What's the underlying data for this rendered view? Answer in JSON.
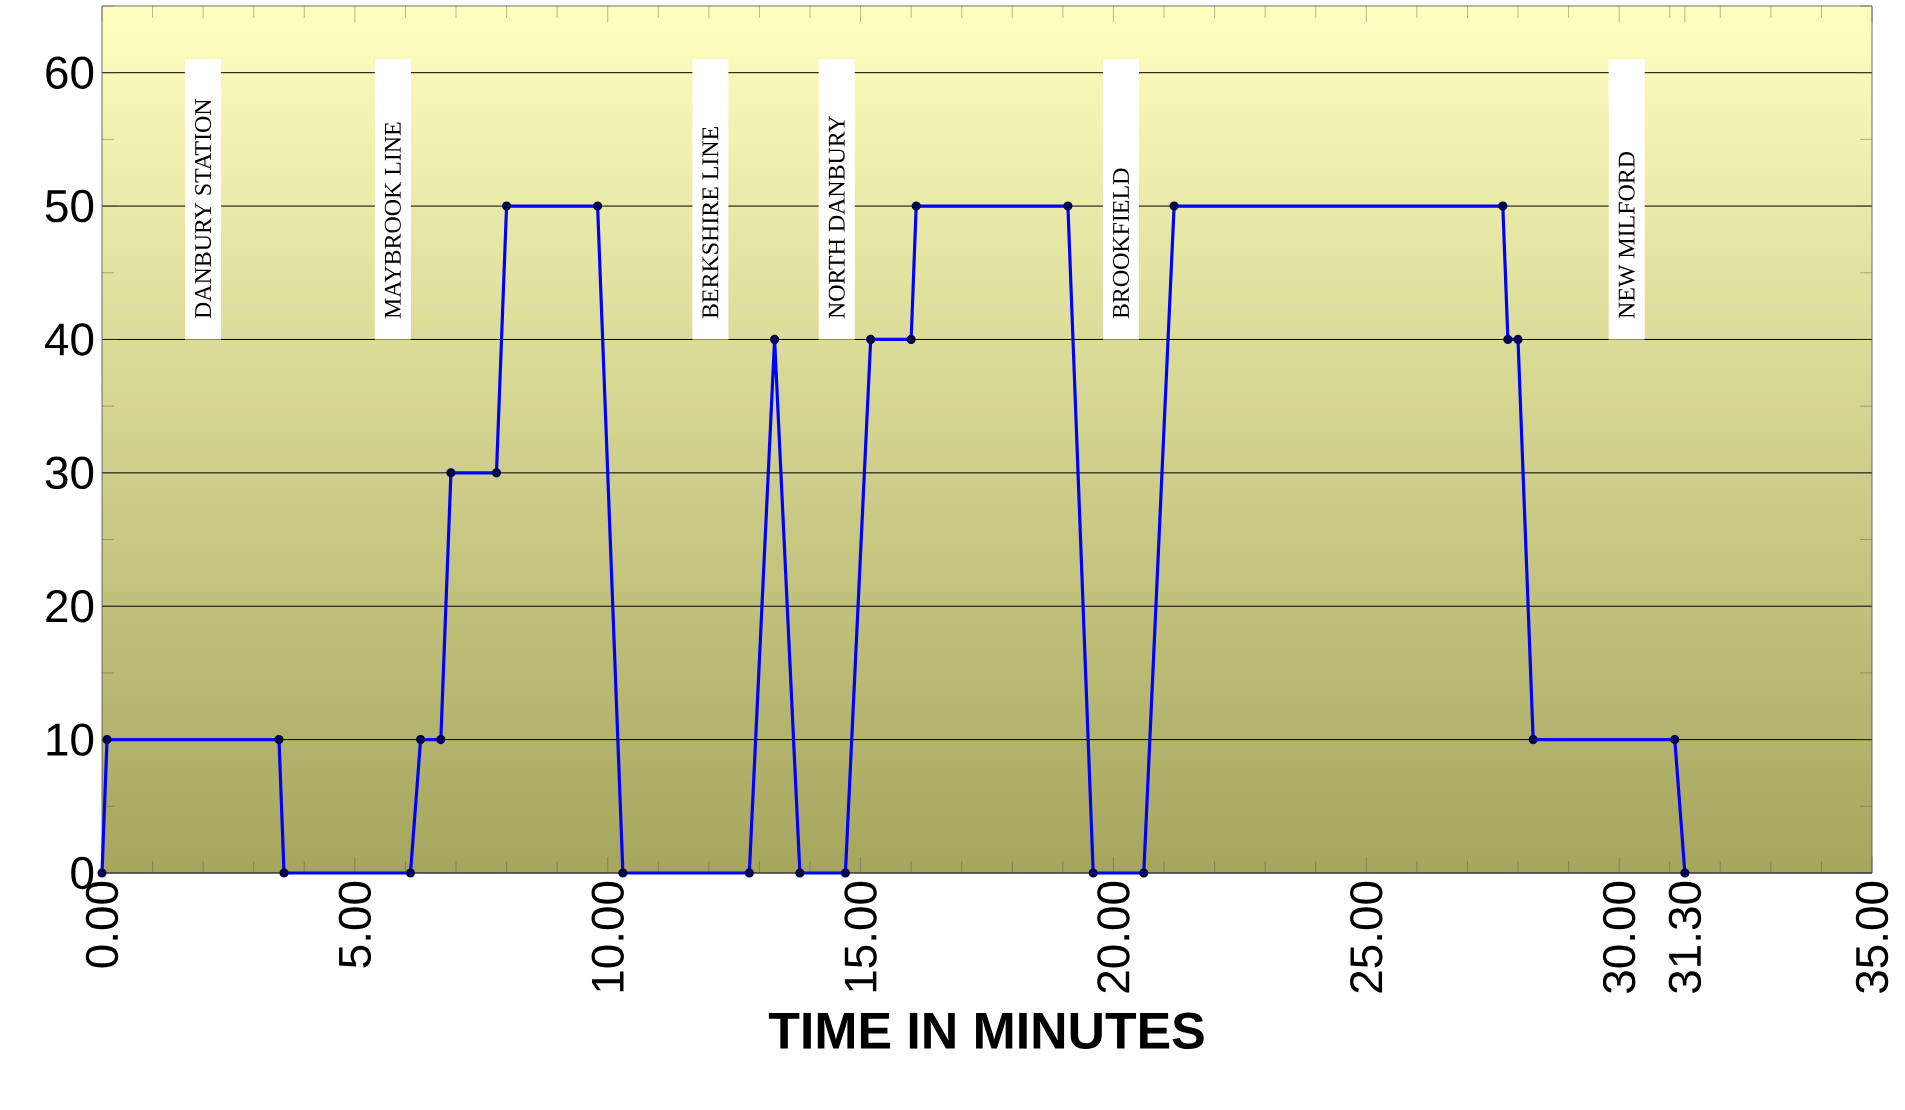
{
  "chart_data": {
    "type": "line",
    "xlabel": "TIME IN MINUTES",
    "x": [
      0,
      0.1,
      3.5,
      3.6,
      6.1,
      6.3,
      6.7,
      6.9,
      7.8,
      8.0,
      9.8,
      10.3,
      12.8,
      13.3,
      13.8,
      14.7,
      15.2,
      16.0,
      16.1,
      19.1,
      19.6,
      20.6,
      21.2,
      27.7,
      27.8,
      28.0,
      28.3,
      31.1,
      31.3
    ],
    "series": [
      {
        "color": "#0000ff",
        "values": [
          0,
          10,
          10,
          0,
          0,
          10,
          10,
          30,
          30,
          50,
          50,
          0,
          0,
          40,
          0,
          0,
          40,
          40,
          50,
          50,
          0,
          0,
          50,
          50,
          40,
          40,
          10,
          10,
          0
        ]
      }
    ],
    "xlim": [
      0,
      35
    ],
    "ylim": [
      0,
      65
    ],
    "xticks": [
      {
        "value": 0,
        "label": "0.00"
      },
      {
        "value": 1,
        "label": null
      },
      {
        "value": 2,
        "label": null
      },
      {
        "value": 3,
        "label": null
      },
      {
        "value": 4,
        "label": null
      },
      {
        "value": 5,
        "label": "5.00"
      },
      {
        "value": 6,
        "label": null
      },
      {
        "value": 7,
        "label": null
      },
      {
        "value": 8,
        "label": null
      },
      {
        "value": 9,
        "label": null
      },
      {
        "value": 10,
        "label": "10.00"
      },
      {
        "value": 11,
        "label": null
      },
      {
        "value": 12,
        "label": null
      },
      {
        "value": 13,
        "label": null
      },
      {
        "value": 14,
        "label": null
      },
      {
        "value": 15,
        "label": "15.00"
      },
      {
        "value": 16,
        "label": null
      },
      {
        "value": 17,
        "label": null
      },
      {
        "value": 18,
        "label": null
      },
      {
        "value": 19,
        "label": null
      },
      {
        "value": 20,
        "label": "20.00"
      },
      {
        "value": 21,
        "label": null
      },
      {
        "value": 22,
        "label": null
      },
      {
        "value": 23,
        "label": null
      },
      {
        "value": 24,
        "label": null
      },
      {
        "value": 25,
        "label": "25.00"
      },
      {
        "value": 26,
        "label": null
      },
      {
        "value": 27,
        "label": null
      },
      {
        "value": 28,
        "label": null
      },
      {
        "value": 29,
        "label": null
      },
      {
        "value": 30,
        "label": "30.00"
      },
      {
        "value": 31,
        "label": null
      },
      {
        "value": 31.3,
        "label": "31.30"
      },
      {
        "value": 32,
        "label": null
      },
      {
        "value": 33,
        "label": null
      },
      {
        "value": 34,
        "label": null
      },
      {
        "value": 35,
        "label": "35.00"
      }
    ],
    "yticks": [
      0,
      {
        "value": 5,
        "label": null
      },
      10,
      {
        "value": 15,
        "label": null
      },
      20,
      {
        "value": 25,
        "label": null
      },
      30,
      {
        "value": 35,
        "label": null
      },
      40,
      {
        "value": 45,
        "label": null
      },
      50,
      {
        "value": 55,
        "label": null
      },
      60,
      {
        "value": 65,
        "label": null
      }
    ],
    "grid": "y",
    "marker": "circle",
    "line_style": "solid",
    "annotations": [
      "DANBURY  STATION",
      "MAYBROOK LINE",
      "BERKSHIRE LINE",
      "NORTH DANBURY",
      "BROOKFIELD",
      "NEW MILFORD"
    ]
  }
}
